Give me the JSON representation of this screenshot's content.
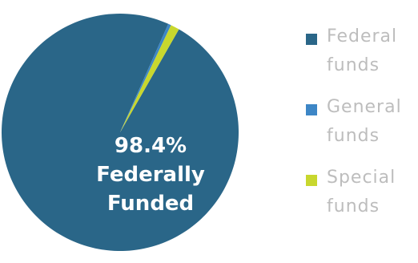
{
  "chart_data": {
    "type": "pie",
    "categories": [
      "Federal funds",
      "General funds",
      "Special funds"
    ],
    "values": [
      98.4,
      0.4,
      1.2
    ],
    "colors": [
      "#2a6688",
      "#3d86c6",
      "#c8d72e"
    ],
    "annotation": {
      "value": "98.4%",
      "line1": "Federally",
      "line2": "Funded"
    },
    "legend_position": "right"
  }
}
